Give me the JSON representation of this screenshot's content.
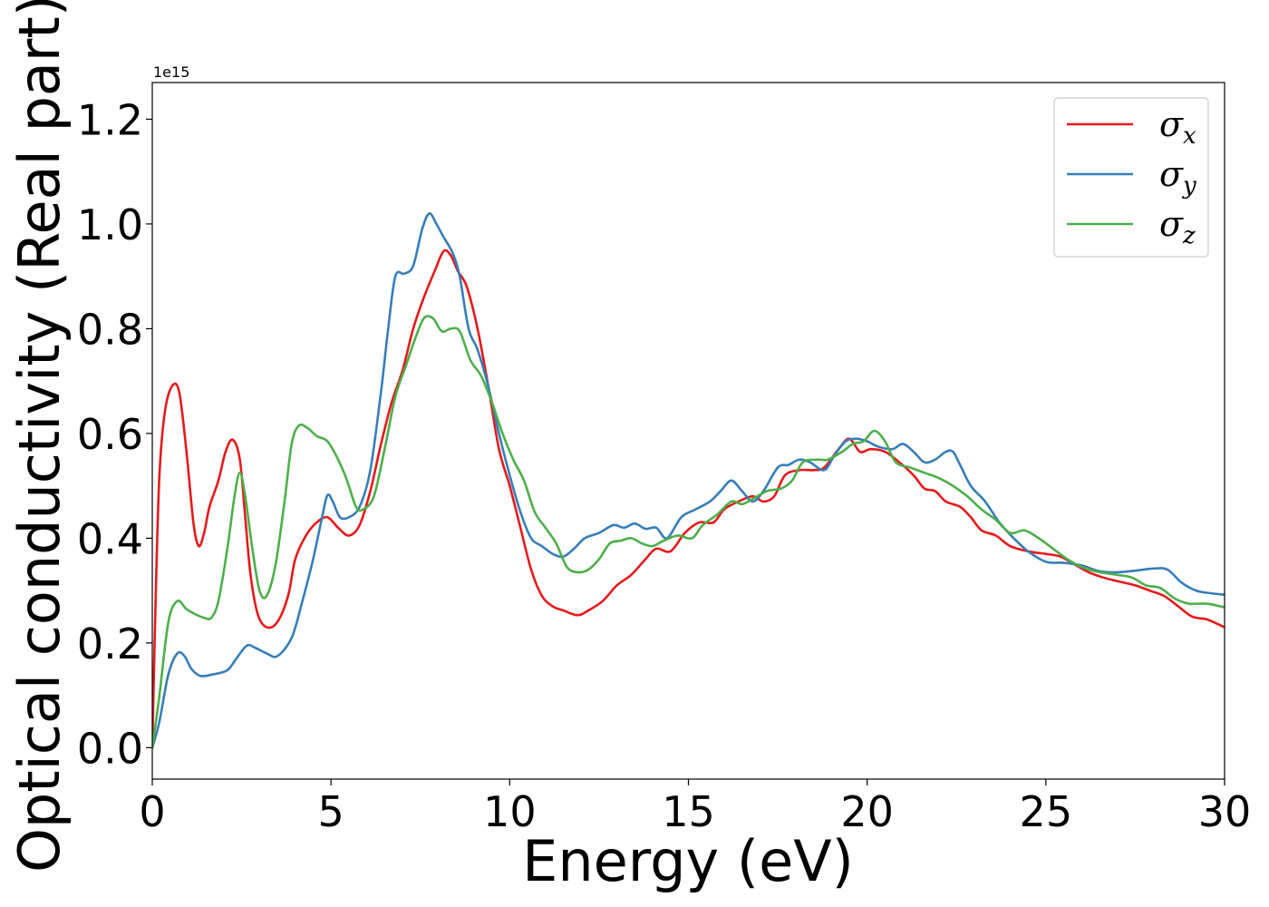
{
  "chart_data": {
    "type": "line",
    "xlabel": "Energy (eV)",
    "ylabel": "Optical conductivity (Real part)",
    "offset_text": "1e15",
    "xlim": [
      0,
      30
    ],
    "ylim": [
      -0.06,
      1.27
    ],
    "xticks": [
      0,
      5,
      10,
      15,
      20,
      25,
      30
    ],
    "xtick_labels": [
      "0",
      "5",
      "10",
      "15",
      "20",
      "25",
      "30"
    ],
    "yticks": [
      0.0,
      0.2,
      0.4,
      0.6,
      0.8,
      1.0,
      1.2
    ],
    "ytick_labels": [
      "0.0",
      "0.2",
      "0.4",
      "0.6",
      "0.8",
      "1.0",
      "1.2"
    ],
    "grid": false,
    "legend_position": "top-right",
    "series": [
      {
        "name": "σx",
        "symbol": "σ",
        "subscript": "x",
        "color": "#e41a1c",
        "points": [
          [
            0,
            0.0
          ],
          [
            0.1,
            0.3
          ],
          [
            0.2,
            0.52
          ],
          [
            0.35,
            0.64
          ],
          [
            0.55,
            0.69
          ],
          [
            0.75,
            0.68
          ],
          [
            0.95,
            0.57
          ],
          [
            1.15,
            0.43
          ],
          [
            1.3,
            0.385
          ],
          [
            1.45,
            0.41
          ],
          [
            1.6,
            0.46
          ],
          [
            1.85,
            0.51
          ],
          [
            2.05,
            0.565
          ],
          [
            2.25,
            0.588
          ],
          [
            2.45,
            0.55
          ],
          [
            2.6,
            0.44
          ],
          [
            2.75,
            0.33
          ],
          [
            2.95,
            0.255
          ],
          [
            3.2,
            0.23
          ],
          [
            3.5,
            0.24
          ],
          [
            3.8,
            0.29
          ],
          [
            4.0,
            0.36
          ],
          [
            4.3,
            0.405
          ],
          [
            4.6,
            0.43
          ],
          [
            4.9,
            0.44
          ],
          [
            5.2,
            0.42
          ],
          [
            5.5,
            0.405
          ],
          [
            5.8,
            0.425
          ],
          [
            6.1,
            0.49
          ],
          [
            6.4,
            0.58
          ],
          [
            6.7,
            0.66
          ],
          [
            7.0,
            0.72
          ],
          [
            7.3,
            0.8
          ],
          [
            7.6,
            0.86
          ],
          [
            7.9,
            0.91
          ],
          [
            8.15,
            0.948
          ],
          [
            8.35,
            0.94
          ],
          [
            8.55,
            0.91
          ],
          [
            8.8,
            0.88
          ],
          [
            9.1,
            0.8
          ],
          [
            9.4,
            0.69
          ],
          [
            9.7,
            0.57
          ],
          [
            10.0,
            0.5
          ],
          [
            10.3,
            0.42
          ],
          [
            10.6,
            0.34
          ],
          [
            10.9,
            0.29
          ],
          [
            11.2,
            0.27
          ],
          [
            11.5,
            0.262
          ],
          [
            11.9,
            0.253
          ],
          [
            12.2,
            0.262
          ],
          [
            12.6,
            0.28
          ],
          [
            13.0,
            0.31
          ],
          [
            13.4,
            0.33
          ],
          [
            13.8,
            0.36
          ],
          [
            14.1,
            0.38
          ],
          [
            14.5,
            0.375
          ],
          [
            14.9,
            0.41
          ],
          [
            15.3,
            0.43
          ],
          [
            15.7,
            0.43
          ],
          [
            16.0,
            0.455
          ],
          [
            16.4,
            0.47
          ],
          [
            16.8,
            0.48
          ],
          [
            17.1,
            0.47
          ],
          [
            17.4,
            0.48
          ],
          [
            17.7,
            0.52
          ],
          [
            18.1,
            0.53
          ],
          [
            18.5,
            0.53
          ],
          [
            18.8,
            0.535
          ],
          [
            19.2,
            0.57
          ],
          [
            19.5,
            0.59
          ],
          [
            19.8,
            0.565
          ],
          [
            20.1,
            0.57
          ],
          [
            20.5,
            0.565
          ],
          [
            20.9,
            0.545
          ],
          [
            21.3,
            0.52
          ],
          [
            21.6,
            0.495
          ],
          [
            21.9,
            0.49
          ],
          [
            22.2,
            0.47
          ],
          [
            22.6,
            0.46
          ],
          [
            22.9,
            0.44
          ],
          [
            23.2,
            0.415
          ],
          [
            23.6,
            0.405
          ],
          [
            24.0,
            0.385
          ],
          [
            24.5,
            0.375
          ],
          [
            25.0,
            0.37
          ],
          [
            25.4,
            0.365
          ],
          [
            25.8,
            0.35
          ],
          [
            26.2,
            0.335
          ],
          [
            26.6,
            0.325
          ],
          [
            27.0,
            0.318
          ],
          [
            27.5,
            0.31
          ],
          [
            27.9,
            0.3
          ],
          [
            28.3,
            0.29
          ],
          [
            28.7,
            0.27
          ],
          [
            29.1,
            0.25
          ],
          [
            29.5,
            0.245
          ],
          [
            30.0,
            0.23
          ]
        ]
      },
      {
        "name": "σy",
        "symbol": "σ",
        "subscript": "y",
        "color": "#377eb8",
        "points": [
          [
            0,
            0.0
          ],
          [
            0.2,
            0.05
          ],
          [
            0.45,
            0.14
          ],
          [
            0.7,
            0.18
          ],
          [
            0.9,
            0.175
          ],
          [
            1.1,
            0.15
          ],
          [
            1.35,
            0.137
          ],
          [
            1.7,
            0.14
          ],
          [
            2.1,
            0.148
          ],
          [
            2.35,
            0.17
          ],
          [
            2.65,
            0.195
          ],
          [
            2.9,
            0.19
          ],
          [
            3.2,
            0.18
          ],
          [
            3.5,
            0.175
          ],
          [
            3.9,
            0.21
          ],
          [
            4.2,
            0.28
          ],
          [
            4.5,
            0.36
          ],
          [
            4.75,
            0.44
          ],
          [
            4.9,
            0.482
          ],
          [
            5.05,
            0.47
          ],
          [
            5.25,
            0.44
          ],
          [
            5.5,
            0.44
          ],
          [
            5.8,
            0.46
          ],
          [
            6.1,
            0.53
          ],
          [
            6.4,
            0.68
          ],
          [
            6.6,
            0.8
          ],
          [
            6.8,
            0.9
          ],
          [
            7.05,
            0.905
          ],
          [
            7.3,
            0.92
          ],
          [
            7.55,
            0.99
          ],
          [
            7.75,
            1.02
          ],
          [
            7.95,
            1.0
          ],
          [
            8.15,
            0.975
          ],
          [
            8.4,
            0.945
          ],
          [
            8.6,
            0.9
          ],
          [
            8.85,
            0.8
          ],
          [
            9.1,
            0.76
          ],
          [
            9.4,
            0.69
          ],
          [
            9.7,
            0.6
          ],
          [
            10.0,
            0.52
          ],
          [
            10.3,
            0.45
          ],
          [
            10.6,
            0.4
          ],
          [
            10.9,
            0.385
          ],
          [
            11.2,
            0.37
          ],
          [
            11.5,
            0.365
          ],
          [
            11.8,
            0.38
          ],
          [
            12.1,
            0.4
          ],
          [
            12.5,
            0.41
          ],
          [
            12.9,
            0.425
          ],
          [
            13.2,
            0.42
          ],
          [
            13.5,
            0.428
          ],
          [
            13.8,
            0.418
          ],
          [
            14.1,
            0.42
          ],
          [
            14.4,
            0.4
          ],
          [
            14.8,
            0.44
          ],
          [
            15.2,
            0.455
          ],
          [
            15.6,
            0.47
          ],
          [
            15.9,
            0.49
          ],
          [
            16.2,
            0.51
          ],
          [
            16.5,
            0.49
          ],
          [
            16.8,
            0.47
          ],
          [
            17.1,
            0.49
          ],
          [
            17.5,
            0.535
          ],
          [
            17.8,
            0.54
          ],
          [
            18.1,
            0.55
          ],
          [
            18.4,
            0.545
          ],
          [
            18.8,
            0.53
          ],
          [
            19.1,
            0.56
          ],
          [
            19.4,
            0.585
          ],
          [
            19.7,
            0.59
          ],
          [
            20.0,
            0.585
          ],
          [
            20.3,
            0.575
          ],
          [
            20.7,
            0.57
          ],
          [
            21.0,
            0.58
          ],
          [
            21.3,
            0.565
          ],
          [
            21.6,
            0.545
          ],
          [
            21.9,
            0.55
          ],
          [
            22.2,
            0.565
          ],
          [
            22.4,
            0.565
          ],
          [
            22.6,
            0.54
          ],
          [
            22.9,
            0.5
          ],
          [
            23.3,
            0.47
          ],
          [
            23.7,
            0.43
          ],
          [
            24.1,
            0.4
          ],
          [
            24.5,
            0.375
          ],
          [
            25.0,
            0.355
          ],
          [
            25.5,
            0.353
          ],
          [
            26.0,
            0.348
          ],
          [
            26.5,
            0.337
          ],
          [
            27.0,
            0.335
          ],
          [
            27.5,
            0.338
          ],
          [
            28.0,
            0.342
          ],
          [
            28.4,
            0.34
          ],
          [
            28.8,
            0.315
          ],
          [
            29.2,
            0.3
          ],
          [
            29.6,
            0.295
          ],
          [
            30.0,
            0.292
          ]
        ]
      },
      {
        "name": "σz",
        "symbol": "σ",
        "subscript": "z",
        "color": "#4daf4a",
        "points": [
          [
            0,
            0.0
          ],
          [
            0.2,
            0.1
          ],
          [
            0.45,
            0.24
          ],
          [
            0.7,
            0.28
          ],
          [
            0.95,
            0.265
          ],
          [
            1.2,
            0.255
          ],
          [
            1.45,
            0.248
          ],
          [
            1.65,
            0.248
          ],
          [
            1.85,
            0.28
          ],
          [
            2.1,
            0.38
          ],
          [
            2.3,
            0.48
          ],
          [
            2.45,
            0.525
          ],
          [
            2.6,
            0.48
          ],
          [
            2.8,
            0.38
          ],
          [
            3.0,
            0.3
          ],
          [
            3.2,
            0.29
          ],
          [
            3.45,
            0.35
          ],
          [
            3.7,
            0.47
          ],
          [
            3.9,
            0.58
          ],
          [
            4.1,
            0.615
          ],
          [
            4.35,
            0.61
          ],
          [
            4.6,
            0.595
          ],
          [
            4.9,
            0.585
          ],
          [
            5.2,
            0.55
          ],
          [
            5.45,
            0.51
          ],
          [
            5.7,
            0.46
          ],
          [
            5.9,
            0.455
          ],
          [
            6.2,
            0.48
          ],
          [
            6.5,
            0.57
          ],
          [
            6.8,
            0.67
          ],
          [
            7.1,
            0.73
          ],
          [
            7.35,
            0.78
          ],
          [
            7.6,
            0.82
          ],
          [
            7.85,
            0.82
          ],
          [
            8.1,
            0.795
          ],
          [
            8.35,
            0.8
          ],
          [
            8.6,
            0.795
          ],
          [
            8.9,
            0.74
          ],
          [
            9.2,
            0.71
          ],
          [
            9.5,
            0.66
          ],
          [
            9.8,
            0.6
          ],
          [
            10.1,
            0.55
          ],
          [
            10.4,
            0.51
          ],
          [
            10.7,
            0.45
          ],
          [
            11.0,
            0.42
          ],
          [
            11.3,
            0.39
          ],
          [
            11.6,
            0.345
          ],
          [
            11.9,
            0.335
          ],
          [
            12.2,
            0.34
          ],
          [
            12.5,
            0.36
          ],
          [
            12.8,
            0.39
          ],
          [
            13.1,
            0.395
          ],
          [
            13.4,
            0.4
          ],
          [
            13.7,
            0.39
          ],
          [
            14.0,
            0.385
          ],
          [
            14.3,
            0.395
          ],
          [
            14.7,
            0.405
          ],
          [
            15.1,
            0.4
          ],
          [
            15.4,
            0.425
          ],
          [
            15.8,
            0.445
          ],
          [
            16.2,
            0.47
          ],
          [
            16.5,
            0.465
          ],
          [
            16.8,
            0.475
          ],
          [
            17.2,
            0.49
          ],
          [
            17.6,
            0.495
          ],
          [
            17.9,
            0.51
          ],
          [
            18.2,
            0.545
          ],
          [
            18.6,
            0.55
          ],
          [
            18.9,
            0.55
          ],
          [
            19.3,
            0.565
          ],
          [
            19.6,
            0.58
          ],
          [
            19.9,
            0.585
          ],
          [
            20.2,
            0.605
          ],
          [
            20.5,
            0.585
          ],
          [
            20.8,
            0.545
          ],
          [
            21.2,
            0.535
          ],
          [
            21.6,
            0.525
          ],
          [
            22.0,
            0.515
          ],
          [
            22.4,
            0.5
          ],
          [
            22.8,
            0.48
          ],
          [
            23.2,
            0.455
          ],
          [
            23.6,
            0.435
          ],
          [
            24.0,
            0.41
          ],
          [
            24.4,
            0.415
          ],
          [
            24.8,
            0.4
          ],
          [
            25.2,
            0.38
          ],
          [
            25.6,
            0.36
          ],
          [
            26.0,
            0.345
          ],
          [
            26.5,
            0.335
          ],
          [
            27.0,
            0.33
          ],
          [
            27.4,
            0.325
          ],
          [
            27.8,
            0.31
          ],
          [
            28.2,
            0.305
          ],
          [
            28.6,
            0.285
          ],
          [
            29.0,
            0.275
          ],
          [
            29.5,
            0.275
          ],
          [
            30.0,
            0.268
          ]
        ]
      }
    ]
  }
}
